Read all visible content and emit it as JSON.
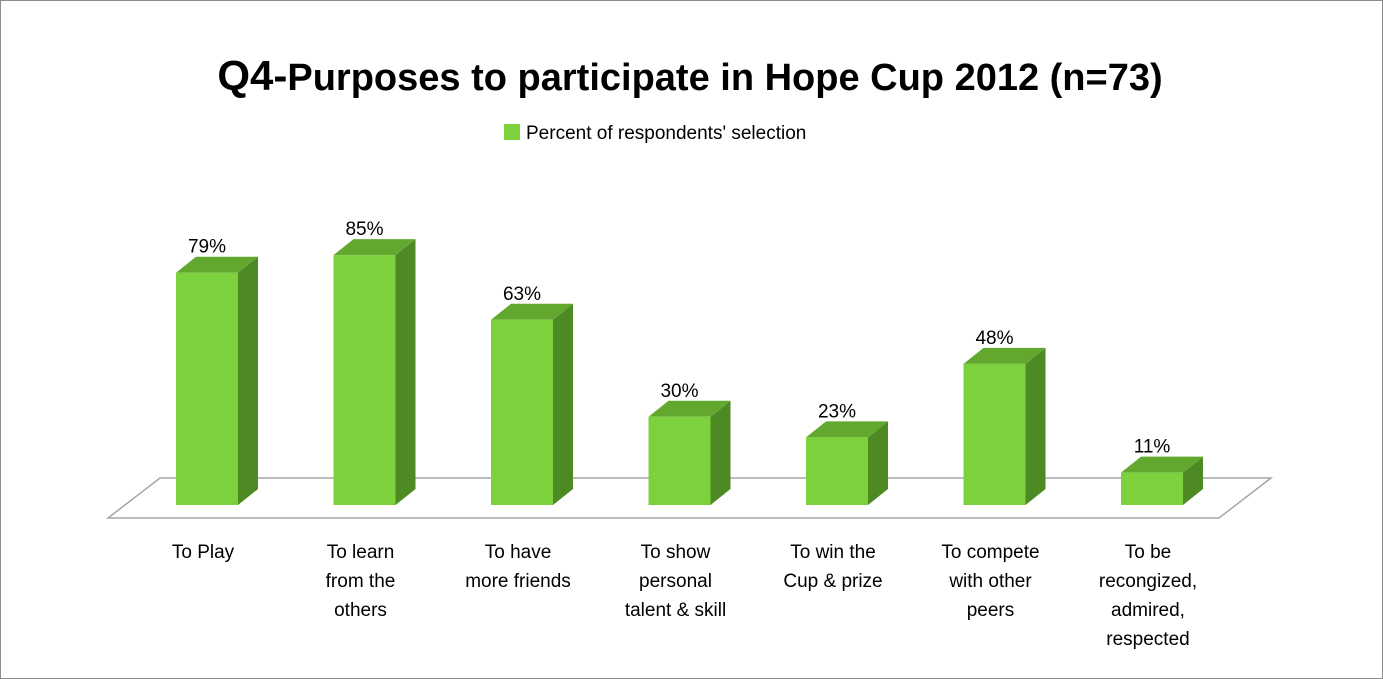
{
  "chart_data": {
    "type": "bar",
    "title_prefix": "Q4-",
    "title_main": "Purposes to participate in Hope Cup 2012 (n=73)",
    "legend_position": "top",
    "series": [
      {
        "name": "Percent of respondents' selection",
        "color": "#7dd13d",
        "values": [
          79,
          85,
          63,
          30,
          23,
          48,
          11
        ]
      }
    ],
    "categories": [
      [
        "To Play"
      ],
      [
        "To learn",
        "from the",
        "others"
      ],
      [
        "To have",
        "more friends"
      ],
      [
        "To show",
        "personal",
        "talent & skill"
      ],
      [
        "To win the",
        "Cup & prize"
      ],
      [
        "To compete",
        "with other",
        "peers"
      ],
      [
        "To be",
        "recongized,",
        "admired,",
        "respected"
      ]
    ],
    "data_labels": [
      "79%",
      "85%",
      "63%",
      "30%",
      "23%",
      "48%",
      "11%"
    ],
    "value_unit": "%",
    "ylim": [
      0,
      100
    ],
    "grid": false,
    "style": "3d-column",
    "colors": {
      "front": "#7dd13d",
      "side": "#4e8a24",
      "top": "#62a82e",
      "floor": "#a6a6a6"
    }
  }
}
